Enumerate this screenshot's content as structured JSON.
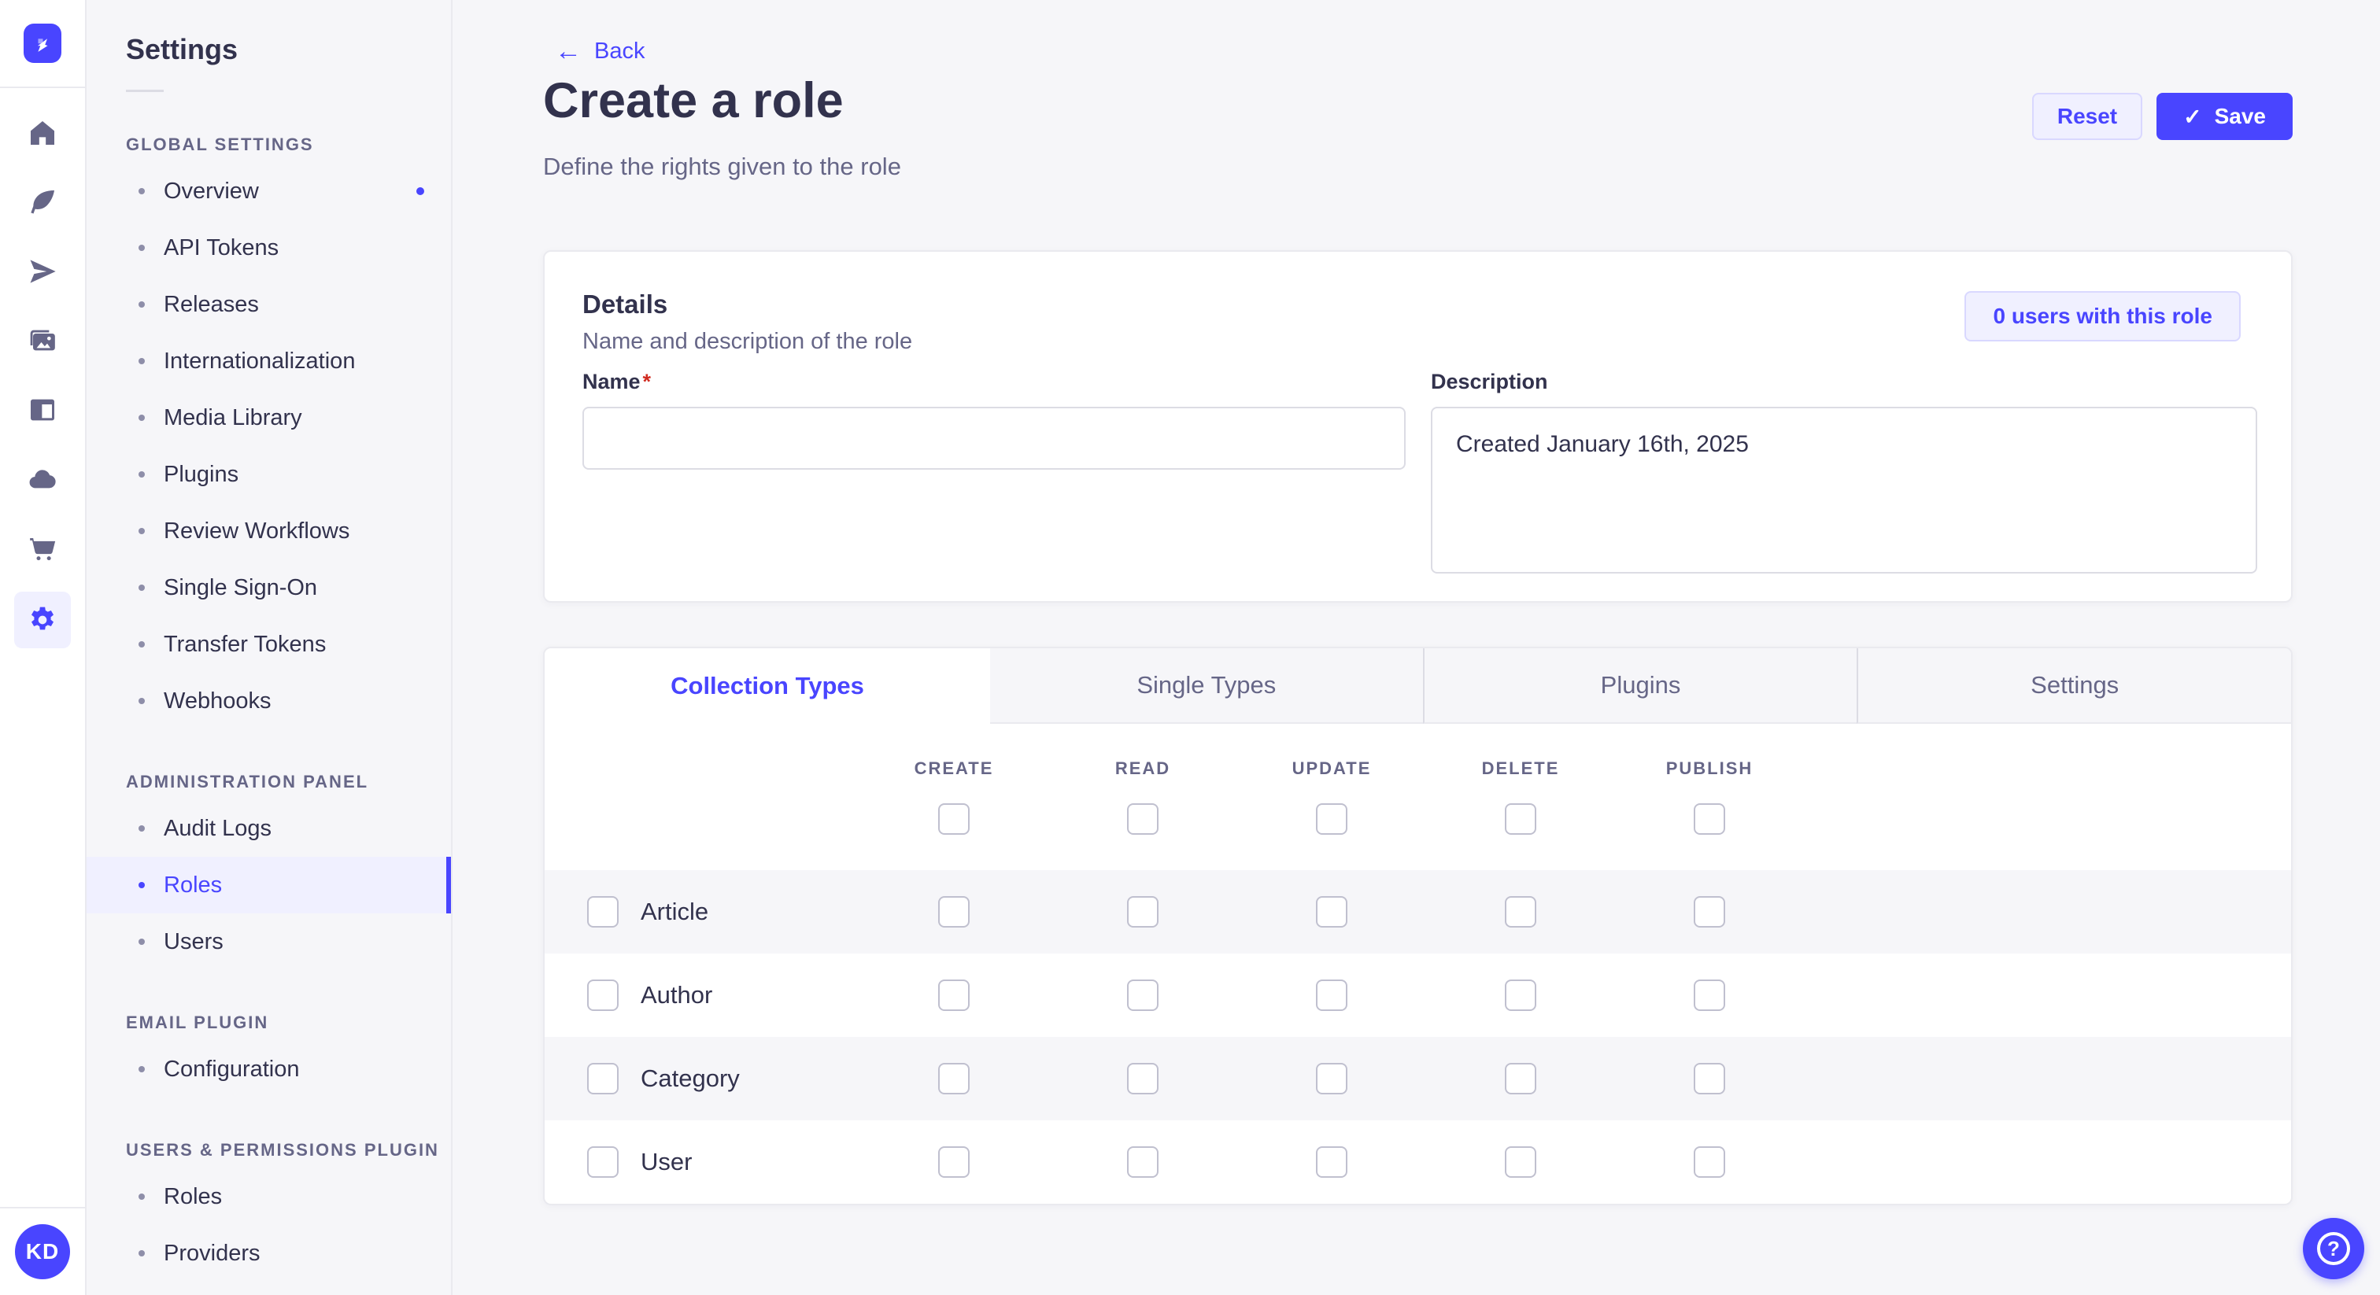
{
  "colors": {
    "primary": "#4945FF",
    "primary_light_bg": "#F0F0FF",
    "primary_border": "#D9D8FF",
    "text_dark": "#32324D",
    "text_gray": "#666687",
    "page_bg": "#F6F6F9",
    "card_bg": "#FFFFFF",
    "border": "#EAEAEF",
    "input_border": "#DCDCE4",
    "checkbox_border": "#C0C0CF",
    "required_red": "#D02B20"
  },
  "rail": {
    "avatar_initials": "KD",
    "icons": [
      {
        "name": "home-icon",
        "icon": "home",
        "active": false
      },
      {
        "name": "content-builder-icon",
        "icon": "write",
        "active": false
      },
      {
        "name": "release-icon",
        "icon": "release",
        "active": false
      },
      {
        "name": "media-library-icon",
        "icon": "media",
        "active": false
      },
      {
        "name": "content-manager-icon",
        "icon": "layout",
        "active": false
      },
      {
        "name": "deploy-cloud-icon",
        "icon": "cloud",
        "active": false
      },
      {
        "name": "marketplace-icon",
        "icon": "cart",
        "active": false
      },
      {
        "name": "settings-gear-icon",
        "icon": "gear",
        "active": true
      }
    ]
  },
  "sidebar": {
    "title": "Settings",
    "sections": [
      {
        "label": "GLOBAL SETTINGS",
        "items": [
          {
            "label": "Overview",
            "notification": true
          },
          {
            "label": "API Tokens"
          },
          {
            "label": "Releases"
          },
          {
            "label": "Internationalization"
          },
          {
            "label": "Media Library"
          },
          {
            "label": "Plugins"
          },
          {
            "label": "Review Workflows"
          },
          {
            "label": "Single Sign-On"
          },
          {
            "label": "Transfer Tokens"
          },
          {
            "label": "Webhooks"
          }
        ]
      },
      {
        "label": "ADMINISTRATION PANEL",
        "items": [
          {
            "label": "Audit Logs"
          },
          {
            "label": "Roles",
            "active": true
          },
          {
            "label": "Users"
          }
        ]
      },
      {
        "label": "EMAIL PLUGIN",
        "items": [
          {
            "label": "Configuration"
          }
        ]
      },
      {
        "label": "USERS & PERMISSIONS PLUGIN",
        "items": [
          {
            "label": "Roles"
          },
          {
            "label": "Providers"
          }
        ]
      }
    ]
  },
  "header": {
    "back_label": "Back",
    "title": "Create a role",
    "subtitle": "Define the rights given to the role",
    "reset_label": "Reset",
    "save_label": "Save"
  },
  "details": {
    "title": "Details",
    "subtitle": "Name and description of the role",
    "users_badge": "0 users with this role",
    "name_label": "Name",
    "required_mark": "*",
    "name_value": "",
    "description_label": "Description",
    "description_value": "Created January 16th, 2025"
  },
  "permissions": {
    "tabs": [
      {
        "label": "Collection Types",
        "active": true
      },
      {
        "label": "Single Types"
      },
      {
        "label": "Plugins"
      },
      {
        "label": "Settings"
      }
    ],
    "columns": [
      "CREATE",
      "READ",
      "UPDATE",
      "DELETE",
      "PUBLISH"
    ],
    "rows": [
      "Article",
      "Author",
      "Category",
      "User"
    ]
  },
  "help": {
    "label": "?"
  }
}
